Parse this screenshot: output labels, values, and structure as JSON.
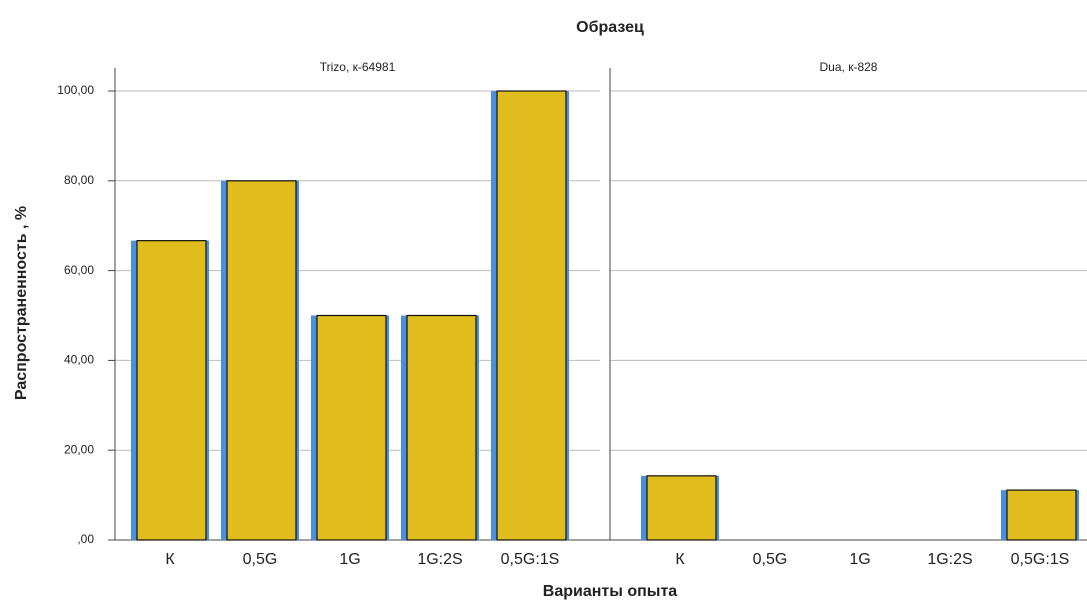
{
  "chart_data": {
    "type": "bar",
    "title": "Образец",
    "x_label": "Варианты опыта",
    "y_label": "Распространенность , %",
    "categories": [
      "К",
      "0,5G",
      "1G",
      "1G:2S",
      "0,5G:1S"
    ],
    "panels": [
      {
        "title": "Trizo, к-64981",
        "values": [
          66.67,
          80,
          50,
          50,
          100
        ]
      },
      {
        "title": "Dua, к-828",
        "values": [
          14.29,
          0,
          0,
          0,
          11.11
        ]
      }
    ],
    "color": "#e0bc1c",
    "shadow_color": "#4a8fe0",
    "ylim": [
      0,
      100
    ],
    "yticks": [
      {
        "value": 0,
        "label": ",00"
      },
      {
        "value": 20,
        "label": "20,00"
      },
      {
        "value": 40,
        "label": "40,00"
      },
      {
        "value": 60,
        "label": "60,00"
      },
      {
        "value": 80,
        "label": "80,00"
      },
      {
        "value": 100,
        "label": "100,00"
      }
    ],
    "grid": true
  }
}
